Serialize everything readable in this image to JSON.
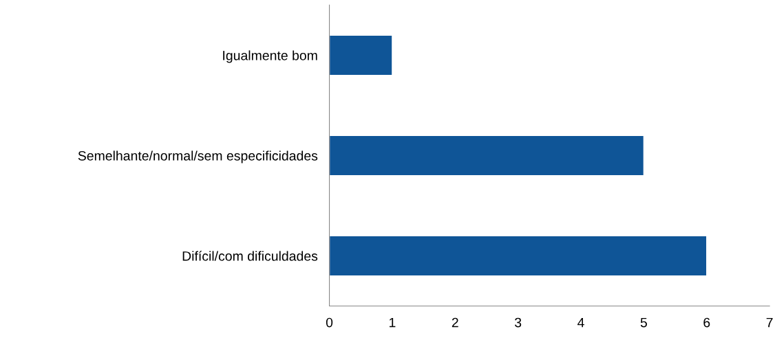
{
  "chart_data": {
    "type": "bar",
    "orientation": "horizontal",
    "categories": [
      "Igualmente bom",
      "Semelhante/normal/sem especificidades",
      "Difícil/com dificuldades"
    ],
    "values": [
      1,
      5,
      6
    ],
    "color": "#0f5597",
    "xlim": [
      0,
      7
    ],
    "xticks": [
      0,
      1,
      2,
      3,
      4,
      5,
      6,
      7
    ],
    "grid": false
  }
}
